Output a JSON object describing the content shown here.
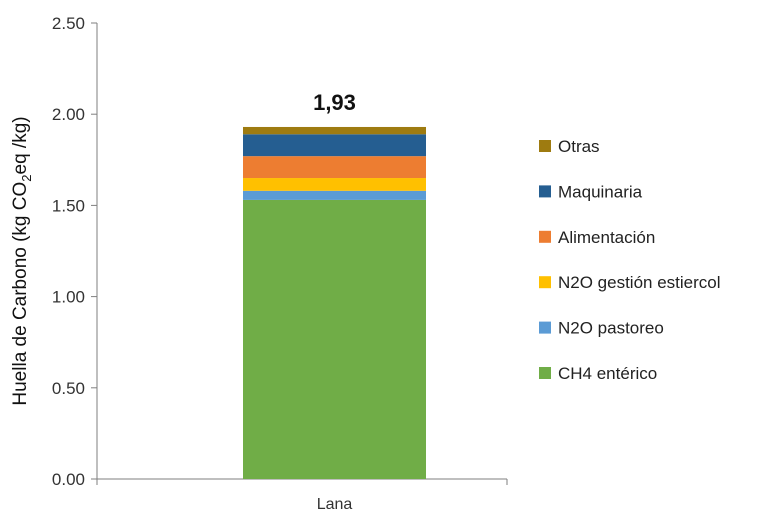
{
  "chart_data": {
    "type": "bar",
    "stacked": true,
    "categories": [
      "Lana"
    ],
    "series": [
      {
        "name": "CH4 entérico",
        "values": [
          1.53
        ],
        "color": "#70ad47"
      },
      {
        "name": "N2O pastoreo",
        "values": [
          0.05
        ],
        "color": "#5b9bd5"
      },
      {
        "name": "N2O gestión estiercol",
        "values": [
          0.07
        ],
        "color": "#ffc000"
      },
      {
        "name": "Alimentación",
        "values": [
          0.12
        ],
        "color": "#ed7d31"
      },
      {
        "name": "Maquinaria",
        "values": [
          0.12
        ],
        "color": "#255e91"
      },
      {
        "name": "Otras",
        "values": [
          0.04
        ],
        "color": "#9e7b10"
      }
    ],
    "total_label": "1,93",
    "ylabel_main": "Huella de Carbono (kg CO",
    "ylabel_sub": "2",
    "ylabel_end": "eq /kg)",
    "ylim": [
      0,
      2.5
    ],
    "yticks": [
      "0.00",
      "0.50",
      "1.00",
      "1.50",
      "2.00",
      "2.50"
    ],
    "ytick_values": [
      0,
      0.5,
      1,
      1.5,
      2,
      2.5
    ],
    "grid": false,
    "legend_position": "right"
  }
}
